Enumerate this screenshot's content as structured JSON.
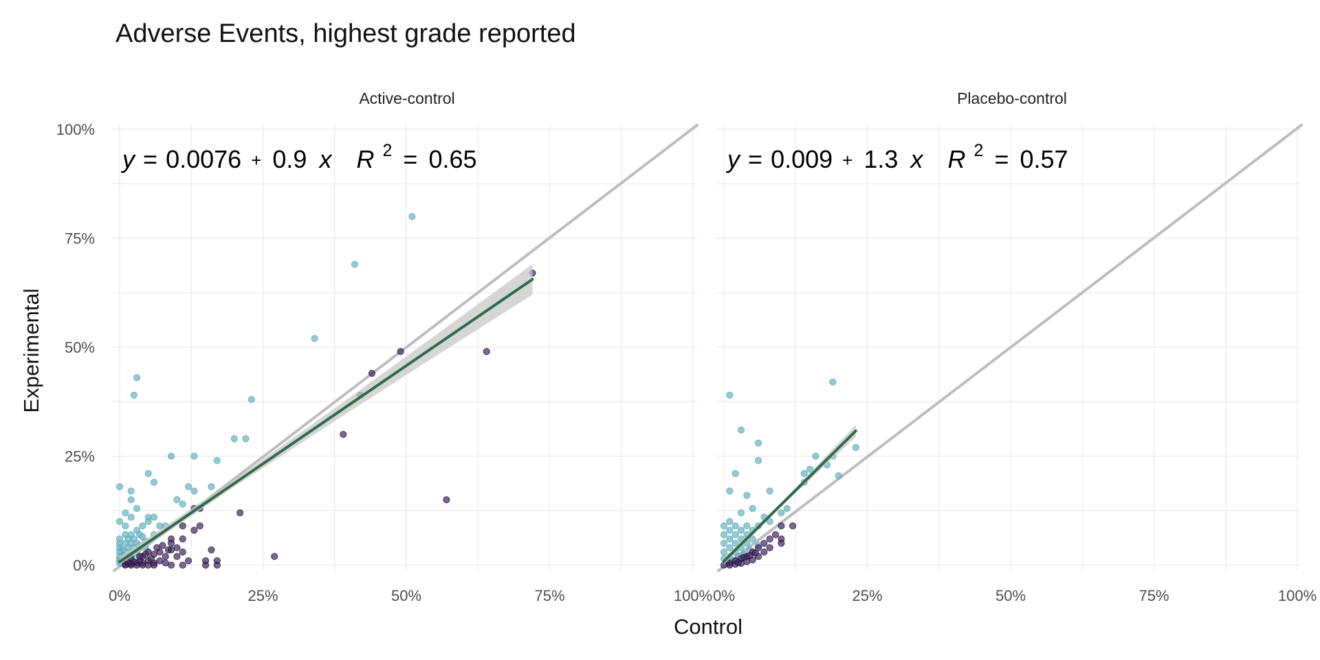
{
  "chart_data": {
    "type": "scatter",
    "title": "Adverse Events, highest grade reported",
    "xlabel": "Control",
    "ylabel": "Experimental",
    "xlim": [
      0,
      1
    ],
    "ylim": [
      0,
      1
    ],
    "tick_values": [
      0,
      0.25,
      0.5,
      0.75,
      1
    ],
    "tick_labels": [
      "0%",
      "25%",
      "50%",
      "75%",
      "100%"
    ],
    "grid": true,
    "legend": "none",
    "colors": {
      "experimental_higher": "#6ab7c4",
      "control_higher": "#3b1f5c",
      "fit_line": "#2e6b4a",
      "fit_band": "#c8c8c8",
      "identity_line": "#bdbdbd"
    },
    "panels": [
      {
        "name": "Active-control",
        "equation": {
          "y_label": "y",
          "intercept": "0.0076",
          "slope": "0.9",
          "x_label": "x",
          "r2_label": "R",
          "r2_power": "2",
          "r2_value": "0.65"
        },
        "fit": {
          "intercept": 0.0076,
          "slope": 0.9,
          "x_range": [
            0,
            0.72
          ],
          "band": [
            [
              0,
              0.012
            ],
            [
              0.2,
              0.008
            ],
            [
              0.4,
              0.016
            ],
            [
              0.55,
              0.024
            ],
            [
              0.72,
              0.035
            ]
          ]
        },
        "points": [
          [
            0.51,
            0.8,
            "e"
          ],
          [
            0.41,
            0.69,
            "e"
          ],
          [
            0.34,
            0.52,
            "e"
          ],
          [
            0.03,
            0.43,
            "e"
          ],
          [
            0.025,
            0.39,
            "e"
          ],
          [
            0.23,
            0.38,
            "e"
          ],
          [
            0.2,
            0.29,
            "e"
          ],
          [
            0.22,
            0.29,
            "e"
          ],
          [
            0.09,
            0.25,
            "e"
          ],
          [
            0.13,
            0.25,
            "e"
          ],
          [
            0.17,
            0.24,
            "e"
          ],
          [
            0.05,
            0.21,
            "e"
          ],
          [
            0.06,
            0.19,
            "e"
          ],
          [
            0.0,
            0.18,
            "e"
          ],
          [
            0.12,
            0.18,
            "e"
          ],
          [
            0.16,
            0.18,
            "e"
          ],
          [
            0.02,
            0.17,
            "e"
          ],
          [
            0.13,
            0.17,
            "e"
          ],
          [
            0.1,
            0.15,
            "e"
          ],
          [
            0.11,
            0.14,
            "e"
          ],
          [
            0.02,
            0.15,
            "e"
          ],
          [
            0.03,
            0.13,
            "e"
          ],
          [
            0.01,
            0.12,
            "e"
          ],
          [
            0.02,
            0.11,
            "e"
          ],
          [
            0.05,
            0.11,
            "e"
          ],
          [
            0.06,
            0.11,
            "e"
          ],
          [
            0.0,
            0.1,
            "e"
          ],
          [
            0.01,
            0.09,
            "e"
          ],
          [
            0.04,
            0.09,
            "e"
          ],
          [
            0.05,
            0.1,
            "e"
          ],
          [
            0.07,
            0.09,
            "e"
          ],
          [
            0.08,
            0.09,
            "e"
          ],
          [
            0.03,
            0.08,
            "e"
          ],
          [
            0.01,
            0.07,
            "e"
          ],
          [
            0.02,
            0.07,
            "e"
          ],
          [
            0.035,
            0.07,
            "e"
          ],
          [
            0.0,
            0.06,
            "e"
          ],
          [
            0.015,
            0.06,
            "e"
          ],
          [
            0.025,
            0.06,
            "e"
          ],
          [
            0.04,
            0.065,
            "e"
          ],
          [
            0.06,
            0.07,
            "e"
          ],
          [
            0.0,
            0.05,
            "e"
          ],
          [
            0.01,
            0.05,
            "e"
          ],
          [
            0.02,
            0.05,
            "e"
          ],
          [
            0.03,
            0.05,
            "e"
          ],
          [
            0.045,
            0.055,
            "e"
          ],
          [
            0.0,
            0.04,
            "e"
          ],
          [
            0.005,
            0.035,
            "e"
          ],
          [
            0.015,
            0.04,
            "e"
          ],
          [
            0.025,
            0.04,
            "e"
          ],
          [
            0.035,
            0.045,
            "e"
          ],
          [
            0.0,
            0.03,
            "e"
          ],
          [
            0.01,
            0.03,
            "e"
          ],
          [
            0.02,
            0.03,
            "e"
          ],
          [
            0.03,
            0.035,
            "e"
          ],
          [
            0.0,
            0.02,
            "e"
          ],
          [
            0.008,
            0.02,
            "e"
          ],
          [
            0.018,
            0.022,
            "e"
          ],
          [
            0.0,
            0.012,
            "e"
          ],
          [
            0.006,
            0.01,
            "e"
          ],
          [
            0.012,
            0.015,
            "e"
          ],
          [
            0.0,
            0.005,
            "e"
          ],
          [
            0.004,
            0.004,
            "e"
          ],
          [
            0.03,
            0.025,
            "e"
          ],
          [
            0.02,
            0.015,
            "e"
          ],
          [
            0.045,
            0.04,
            "e"
          ],
          [
            0.72,
            0.67,
            "c"
          ],
          [
            0.49,
            0.49,
            "c"
          ],
          [
            0.64,
            0.49,
            "c"
          ],
          [
            0.44,
            0.44,
            "c"
          ],
          [
            0.42,
            0.39,
            "c"
          ],
          [
            0.39,
            0.3,
            "c"
          ],
          [
            0.57,
            0.15,
            "c"
          ],
          [
            0.14,
            0.13,
            "c"
          ],
          [
            0.13,
            0.13,
            "c"
          ],
          [
            0.21,
            0.12,
            "c"
          ],
          [
            0.14,
            0.09,
            "c"
          ],
          [
            0.13,
            0.08,
            "c"
          ],
          [
            0.11,
            0.09,
            "c"
          ],
          [
            0.09,
            0.06,
            "c"
          ],
          [
            0.11,
            0.06,
            "c"
          ],
          [
            0.09,
            0.05,
            "c"
          ],
          [
            0.1,
            0.04,
            "c"
          ],
          [
            0.09,
            0.035,
            "c"
          ],
          [
            0.16,
            0.035,
            "c"
          ],
          [
            0.11,
            0.03,
            "c"
          ],
          [
            0.07,
            0.03,
            "c"
          ],
          [
            0.05,
            0.03,
            "c"
          ],
          [
            0.06,
            0.025,
            "c"
          ],
          [
            0.08,
            0.02,
            "c"
          ],
          [
            0.1,
            0.02,
            "c"
          ],
          [
            0.27,
            0.02,
            "c"
          ],
          [
            0.12,
            0.01,
            "c"
          ],
          [
            0.15,
            0.01,
            "c"
          ],
          [
            0.17,
            0.01,
            "c"
          ],
          [
            0.02,
            0.015,
            "c"
          ],
          [
            0.04,
            0.02,
            "c"
          ],
          [
            0.05,
            0.01,
            "c"
          ],
          [
            0.06,
            0.005,
            "c"
          ],
          [
            0.04,
            0.005,
            "c"
          ],
          [
            0.03,
            0.005,
            "c"
          ],
          [
            0.02,
            0.003,
            "c"
          ],
          [
            0.01,
            0.002,
            "c"
          ],
          [
            0.07,
            0.01,
            "c"
          ],
          [
            0.08,
            0.005,
            "c"
          ],
          [
            0.09,
            0.0,
            "c"
          ],
          [
            0.11,
            0.0,
            "c"
          ],
          [
            0.15,
            0.0,
            "c"
          ],
          [
            0.17,
            0.0,
            "c"
          ],
          [
            0.06,
            0.0,
            "c"
          ],
          [
            0.05,
            0.0,
            "c"
          ],
          [
            0.04,
            0.0,
            "c"
          ],
          [
            0.03,
            0.0,
            "c"
          ],
          [
            0.02,
            0.0,
            "c"
          ],
          [
            0.01,
            0.0,
            "c"
          ],
          [
            0.055,
            0.015,
            "c"
          ],
          [
            0.035,
            0.01,
            "c"
          ],
          [
            0.025,
            0.008,
            "c"
          ],
          [
            0.015,
            0.005,
            "c"
          ],
          [
            0.065,
            0.04,
            "c"
          ],
          [
            0.075,
            0.045,
            "c"
          ],
          [
            0.045,
            0.025,
            "c"
          ],
          [
            0.035,
            0.02,
            "c"
          ],
          [
            0.085,
            0.035,
            "c"
          ]
        ]
      },
      {
        "name": "Placebo-control",
        "equation": {
          "y_label": "y",
          "intercept": "0.009",
          "slope": "1.3",
          "x_label": "x",
          "r2_label": "R",
          "r2_power": "2",
          "r2_value": "0.57"
        },
        "fit": {
          "intercept": 0.009,
          "slope": 1.3,
          "x_range": [
            0,
            0.23
          ],
          "band": [
            [
              0,
              0.008
            ],
            [
              0.1,
              0.004
            ],
            [
              0.23,
              0.014
            ]
          ]
        },
        "points": [
          [
            0.19,
            0.42,
            "e"
          ],
          [
            0.01,
            0.39,
            "e"
          ],
          [
            0.03,
            0.31,
            "e"
          ],
          [
            0.06,
            0.28,
            "e"
          ],
          [
            0.23,
            0.27,
            "e"
          ],
          [
            0.16,
            0.25,
            "e"
          ],
          [
            0.06,
            0.24,
            "e"
          ],
          [
            0.19,
            0.25,
            "e"
          ],
          [
            0.18,
            0.23,
            "e"
          ],
          [
            0.14,
            0.21,
            "e"
          ],
          [
            0.02,
            0.21,
            "e"
          ],
          [
            0.15,
            0.22,
            "e"
          ],
          [
            0.2,
            0.205,
            "e"
          ],
          [
            0.14,
            0.19,
            "e"
          ],
          [
            0.01,
            0.17,
            "e"
          ],
          [
            0.08,
            0.17,
            "e"
          ],
          [
            0.04,
            0.16,
            "e"
          ],
          [
            0.11,
            0.13,
            "e"
          ],
          [
            0.05,
            0.13,
            "e"
          ],
          [
            0.1,
            0.12,
            "e"
          ],
          [
            0.03,
            0.12,
            "e"
          ],
          [
            0.07,
            0.11,
            "e"
          ],
          [
            0.08,
            0.1,
            "e"
          ],
          [
            0.01,
            0.1,
            "e"
          ],
          [
            0.0,
            0.09,
            "e"
          ],
          [
            0.02,
            0.09,
            "e"
          ],
          [
            0.04,
            0.09,
            "e"
          ],
          [
            0.06,
            0.09,
            "e"
          ],
          [
            0.01,
            0.08,
            "e"
          ],
          [
            0.03,
            0.08,
            "e"
          ],
          [
            0.05,
            0.08,
            "e"
          ],
          [
            0.0,
            0.07,
            "e"
          ],
          [
            0.02,
            0.07,
            "e"
          ],
          [
            0.04,
            0.07,
            "e"
          ],
          [
            0.01,
            0.06,
            "e"
          ],
          [
            0.03,
            0.06,
            "e"
          ],
          [
            0.05,
            0.06,
            "e"
          ],
          [
            0.0,
            0.05,
            "e"
          ],
          [
            0.02,
            0.05,
            "e"
          ],
          [
            0.04,
            0.05,
            "e"
          ],
          [
            0.01,
            0.04,
            "e"
          ],
          [
            0.03,
            0.04,
            "e"
          ],
          [
            0.0,
            0.03,
            "e"
          ],
          [
            0.02,
            0.03,
            "e"
          ],
          [
            0.01,
            0.02,
            "e"
          ],
          [
            0.0,
            0.015,
            "e"
          ],
          [
            0.015,
            0.01,
            "e"
          ],
          [
            0.005,
            0.005,
            "e"
          ],
          [
            0.025,
            0.02,
            "e"
          ],
          [
            0.035,
            0.025,
            "e"
          ],
          [
            0.045,
            0.035,
            "e"
          ],
          [
            0.06,
            0.045,
            "e"
          ],
          [
            0.12,
            0.09,
            "c"
          ],
          [
            0.1,
            0.09,
            "c"
          ],
          [
            0.09,
            0.07,
            "c"
          ],
          [
            0.1,
            0.06,
            "c"
          ],
          [
            0.08,
            0.06,
            "c"
          ],
          [
            0.1,
            0.05,
            "c"
          ],
          [
            0.07,
            0.05,
            "c"
          ],
          [
            0.06,
            0.04,
            "c"
          ],
          [
            0.08,
            0.04,
            "c"
          ],
          [
            0.05,
            0.03,
            "c"
          ],
          [
            0.07,
            0.03,
            "c"
          ],
          [
            0.04,
            0.02,
            "c"
          ],
          [
            0.06,
            0.02,
            "c"
          ],
          [
            0.03,
            0.015,
            "c"
          ],
          [
            0.05,
            0.012,
            "c"
          ],
          [
            0.02,
            0.01,
            "c"
          ],
          [
            0.04,
            0.008,
            "c"
          ],
          [
            0.01,
            0.005,
            "c"
          ],
          [
            0.03,
            0.004,
            "c"
          ],
          [
            0.02,
            0.002,
            "c"
          ],
          [
            0.01,
            0.0,
            "c"
          ],
          [
            0.0,
            0.0,
            "c"
          ],
          [
            0.035,
            0.018,
            "c"
          ],
          [
            0.045,
            0.022,
            "c"
          ],
          [
            0.055,
            0.028,
            "c"
          ],
          [
            0.025,
            0.006,
            "c"
          ]
        ]
      }
    ]
  }
}
